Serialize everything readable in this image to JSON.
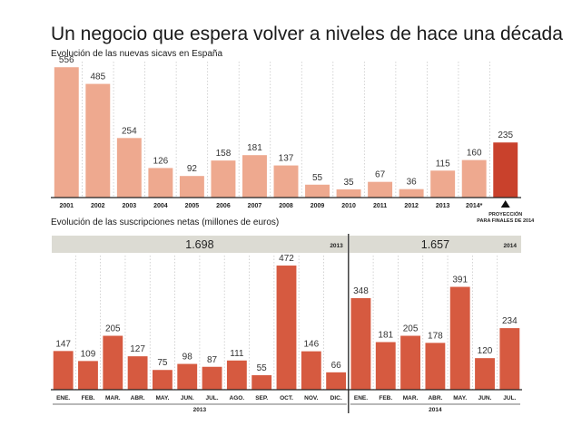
{
  "title": "Un negocio que espera volver a niveles de hace una década",
  "colors": {
    "bar_light": "#eea98f",
    "bar_proj": "#c9412c",
    "bar_dark": "#d65a40",
    "band": "#dcdbd3",
    "grid": "#c8c8c8",
    "axis": "#222222"
  },
  "chart_data": [
    {
      "type": "bar",
      "title": "Evolución de las nuevas sicavs en España",
      "categories": [
        "2001",
        "2002",
        "2003",
        "2004",
        "2005",
        "2006",
        "2007",
        "2008",
        "2009",
        "2010",
        "2011",
        "2012",
        "2013",
        "2014*",
        ""
      ],
      "values": [
        556,
        485,
        254,
        126,
        92,
        158,
        181,
        137,
        55,
        35,
        67,
        36,
        115,
        160,
        235
      ],
      "highlight_index": 14,
      "annotation": [
        "PROYECCIÓN",
        "PARA FINALES DE 2014"
      ],
      "ylim": [
        0,
        580
      ],
      "grid": true
    },
    {
      "type": "bar",
      "title": "Evolución de las suscripciones netas (millones de euros)",
      "groups": [
        {
          "year": "2013",
          "total": "1.698",
          "categories": [
            "ENE.",
            "FEB.",
            "MAR.",
            "ABR.",
            "MAY.",
            "JUN.",
            "JUL.",
            "AGO.",
            "SEP.",
            "OCT.",
            "NOV.",
            "DIC."
          ],
          "values": [
            147,
            109,
            205,
            127,
            75,
            98,
            87,
            111,
            55,
            472,
            146,
            66
          ]
        },
        {
          "year": "2014",
          "total": "1.657",
          "categories": [
            "ENE.",
            "FEB.",
            "MAR.",
            "ABR.",
            "MAY.",
            "JUN.",
            "JUL."
          ],
          "values": [
            348,
            181,
            205,
            178,
            391,
            120,
            234
          ]
        }
      ],
      "ylim": [
        0,
        510
      ],
      "grid": true
    }
  ]
}
